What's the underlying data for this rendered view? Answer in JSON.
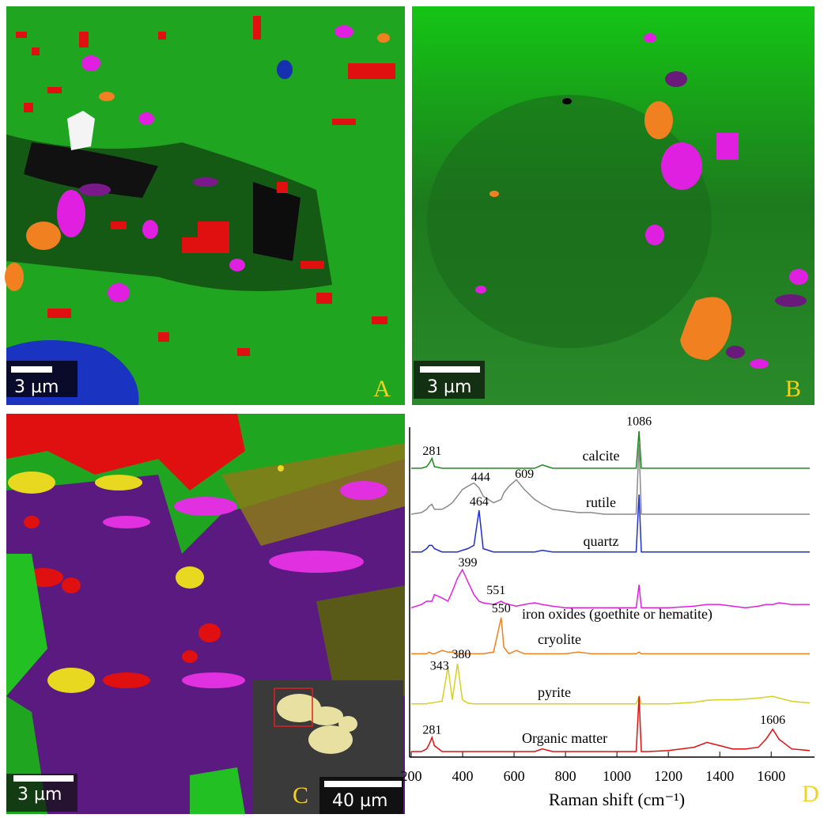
{
  "panels": [
    {
      "label": "A",
      "scale_bar": "3 µm"
    },
    {
      "label": "B",
      "scale_bar": "3 µm"
    },
    {
      "label": "C",
      "scale_bar": "3 µm",
      "inset_scale_bar": "40 µm"
    },
    {
      "label": "D"
    }
  ],
  "chart_data": {
    "type": "line",
    "xlabel": "Raman shift (cm⁻¹)",
    "xlim": [
      200,
      1750
    ],
    "xticks": [
      200,
      400,
      600,
      800,
      1000,
      1200,
      1400,
      1600
    ],
    "ylim": [
      0,
      100
    ],
    "x": [
      200,
      240,
      260,
      270,
      281,
      290,
      320,
      343,
      360,
      380,
      399,
      420,
      444,
      464,
      480,
      520,
      550,
      560,
      580,
      609,
      640,
      680,
      710,
      750,
      800,
      850,
      900,
      950,
      1000,
      1050,
      1075,
      1086,
      1095,
      1120,
      1200,
      1300,
      1350,
      1400,
      1450,
      1500,
      1550,
      1580,
      1606,
      1630,
      1680,
      1750
    ],
    "series": [
      {
        "name": "calcite",
        "color": "#1a8a1a",
        "values": [
          87.5,
          87.5,
          88,
          89,
          90.5,
          88,
          87.5,
          87.5,
          87.5,
          87.5,
          87.5,
          87.5,
          87.5,
          87.5,
          87.5,
          87.5,
          87.5,
          87.5,
          87.5,
          87.5,
          87.5,
          87.5,
          88.5,
          87.5,
          87.5,
          87.5,
          87.5,
          87.5,
          87.5,
          87.5,
          87.5,
          98.8,
          87.5,
          87.5,
          87.5,
          87.5,
          87.5,
          87.5,
          87.5,
          87.5,
          87.5,
          87.5,
          87.5,
          87.5,
          87.5,
          87.5
        ]
      },
      {
        "name": "rutile",
        "color": "#8a8a8a",
        "values": [
          73.5,
          74,
          75,
          76,
          76.5,
          75,
          75,
          76,
          77,
          79,
          81,
          82,
          83,
          81.5,
          79,
          77,
          78,
          80,
          82,
          84,
          81,
          78,
          76.5,
          75,
          74.5,
          74,
          74,
          73.5,
          73.5,
          73.5,
          73.5,
          95,
          73.5,
          73.5,
          73.5,
          73.5,
          73.5,
          73.5,
          73.5,
          73.5,
          73.5,
          73.5,
          73.5,
          73.5,
          73.5,
          73.5
        ]
      },
      {
        "name": "quartz",
        "color": "#1f2fd0",
        "values": [
          62,
          62,
          63,
          64,
          64,
          63,
          62,
          62,
          62,
          62,
          62.5,
          63,
          64,
          74.7,
          63,
          62,
          62,
          62,
          62,
          62,
          62,
          62,
          62.5,
          62,
          62,
          62,
          62,
          62,
          62,
          62,
          62,
          79.5,
          62,
          62,
          62,
          62,
          62,
          62,
          62,
          62,
          62,
          62,
          62,
          62,
          62,
          62
        ]
      },
      {
        "name": "iron oxides (goethite or hematite)",
        "color": "#e020e0",
        "values": [
          45,
          46,
          47,
          47,
          47,
          49,
          48,
          47,
          50,
          54,
          56.6,
          53,
          49,
          47,
          46.5,
          46,
          47,
          46.5,
          46,
          45.5,
          46,
          46.5,
          46,
          45.5,
          45,
          45,
          45,
          45,
          45,
          45,
          45,
          52,
          45,
          45,
          45,
          45.5,
          46,
          46,
          45.5,
          45,
          45.5,
          46,
          46,
          46.5,
          46,
          46
        ]
      },
      {
        "name": "cryolite",
        "color": "#f08020",
        "values": [
          31,
          31,
          31,
          31.5,
          31,
          31,
          32,
          31.5,
          31.5,
          31,
          31,
          31,
          31,
          31,
          31,
          31.5,
          42,
          33,
          31,
          32,
          31,
          31,
          31,
          31,
          31,
          31.5,
          31,
          31,
          31,
          31,
          31,
          31.5,
          31,
          31,
          31,
          31,
          31,
          31,
          31,
          31,
          31,
          31,
          31,
          31,
          31,
          31
        ]
      },
      {
        "name": "pyrite",
        "color": "#d8d020",
        "values": [
          15.7,
          15.7,
          15.7,
          16,
          16,
          16.2,
          16.5,
          27,
          17,
          28,
          17,
          16,
          15.7,
          15.7,
          15.7,
          15.7,
          15.7,
          15.7,
          15.7,
          15.7,
          15.7,
          15.7,
          15.7,
          15.7,
          15.7,
          15.7,
          15.7,
          15.7,
          15.7,
          15.7,
          15.7,
          18,
          15.7,
          15.7,
          15.7,
          16.2,
          16.8,
          17,
          17,
          17.2,
          17.5,
          17.8,
          18,
          17.5,
          16.5,
          16
        ]
      },
      {
        "name": "Organic matter",
        "color": "#e01010",
        "values": [
          1.2,
          1.2,
          2,
          3.5,
          5.5,
          3,
          1.2,
          1.2,
          1.2,
          1.2,
          1.2,
          1.2,
          1.2,
          1.2,
          1.2,
          1.2,
          1.2,
          1.2,
          1.2,
          1.2,
          1.2,
          1.2,
          2,
          1.2,
          1.2,
          1.2,
          1.2,
          1.2,
          1.2,
          1.2,
          1.2,
          18,
          1.2,
          1.2,
          1.5,
          2.5,
          4,
          3,
          2,
          2,
          2.5,
          5,
          8,
          5,
          2,
          1.5
        ]
      }
    ],
    "annotations": [
      {
        "text": "281",
        "x": 281,
        "y": 92.5
      },
      {
        "text": "1086",
        "x": 1086,
        "y": 101.5
      },
      {
        "text": "444",
        "x": 470,
        "y": 84.5
      },
      {
        "text": "609",
        "x": 640,
        "y": 85.5
      },
      {
        "text": "464",
        "x": 464,
        "y": 77
      },
      {
        "text": "399",
        "x": 420,
        "y": 58.5
      },
      {
        "text": "551",
        "x": 530,
        "y": 50
      },
      {
        "text": "550",
        "x": 550,
        "y": 44.5
      },
      {
        "text": "343",
        "x": 310,
        "y": 27
      },
      {
        "text": "380",
        "x": 395,
        "y": 30.5
      },
      {
        "text": "281",
        "x": 281,
        "y": 7.5
      },
      {
        "text": "1606",
        "x": 1606,
        "y": 10.5
      }
    ]
  }
}
